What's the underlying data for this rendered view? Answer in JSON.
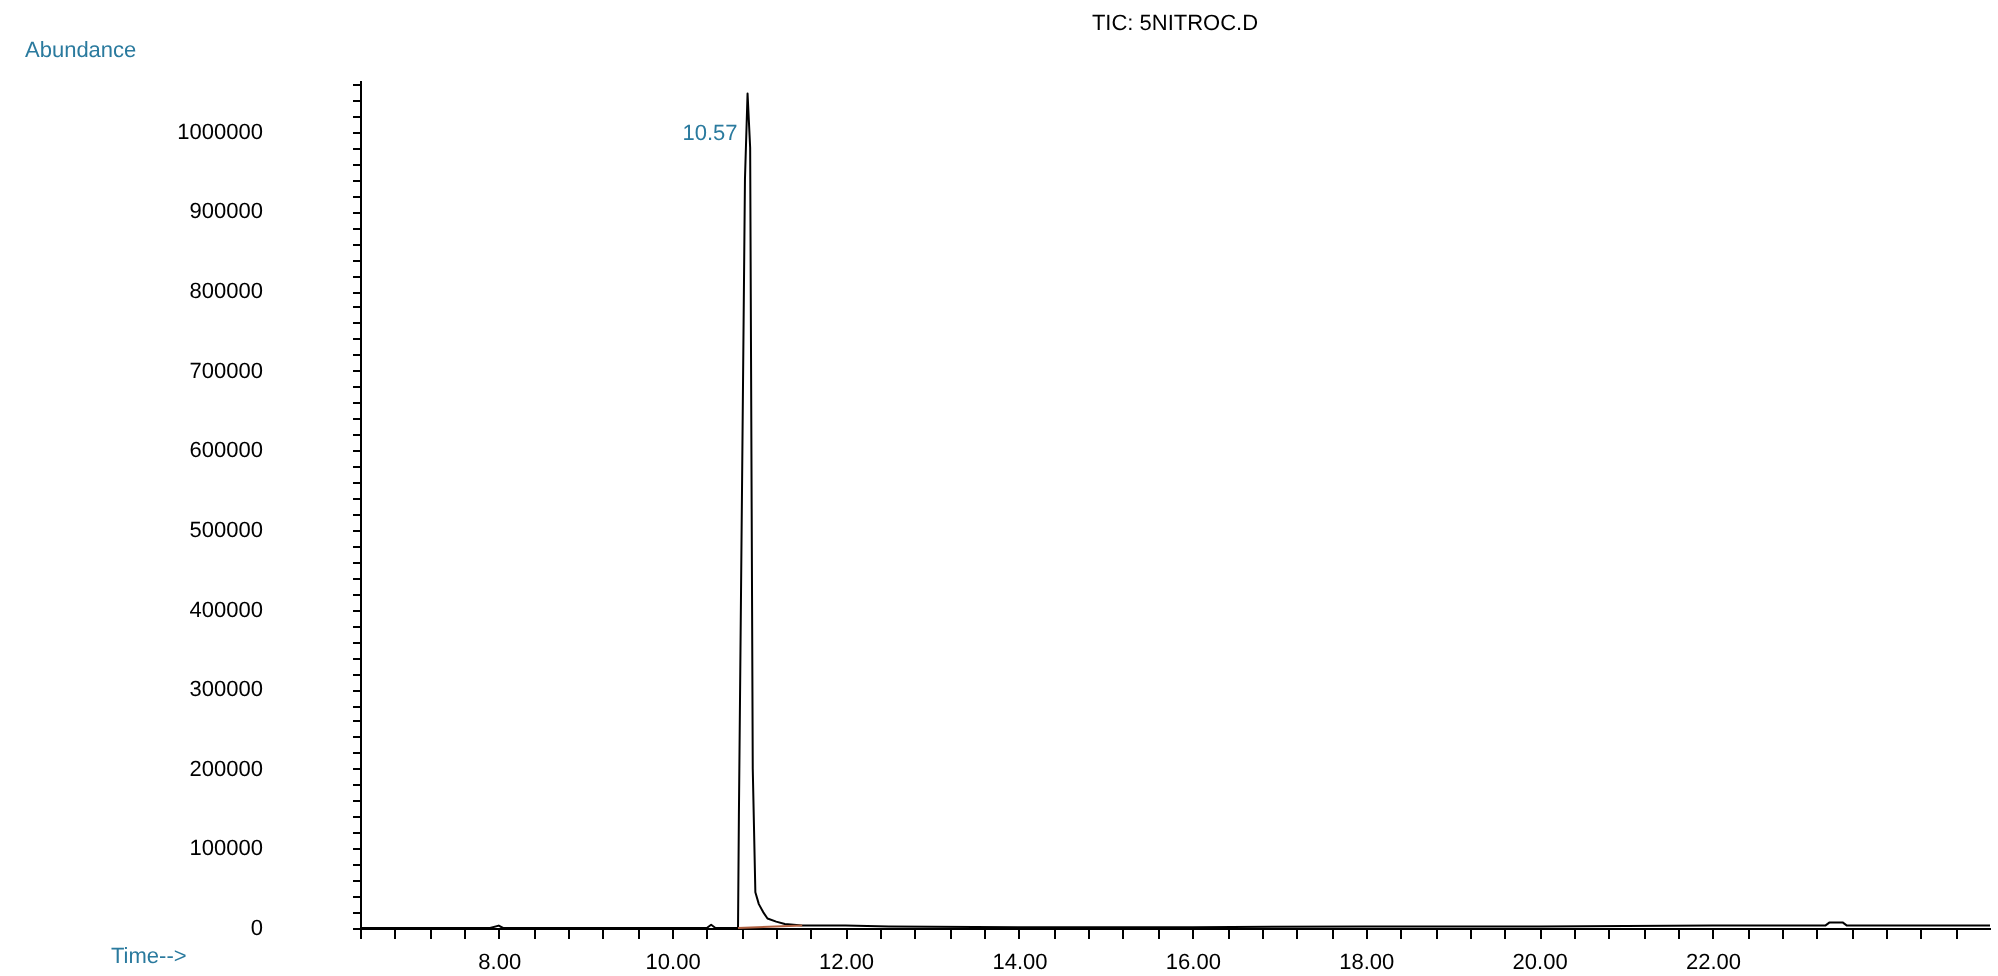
{
  "chart_data": {
    "type": "line",
    "title": "TIC: 5NITROC.D",
    "xlabel": "Time-->",
    "ylabel": "Abundance",
    "xlim": [
      6.4,
      25.2
    ],
    "ylim": [
      0,
      1065000
    ],
    "xticks": [
      {
        "value": 6.4,
        "label": null
      },
      {
        "value": 6.8,
        "label": null
      },
      {
        "value": 7.2,
        "label": null
      },
      {
        "value": 7.6,
        "label": null
      },
      {
        "value": 8,
        "label": "8.00"
      },
      {
        "value": 8.4,
        "label": null
      },
      {
        "value": 8.8,
        "label": null
      },
      {
        "value": 9.2,
        "label": null
      },
      {
        "value": 9.6,
        "label": null
      },
      {
        "value": 10,
        "label": "10.00"
      },
      {
        "value": 10.4,
        "label": null
      },
      {
        "value": 10.8,
        "label": null
      },
      {
        "value": 11.2,
        "label": null
      },
      {
        "value": 11.6,
        "label": null
      },
      {
        "value": 12,
        "label": "12.00"
      },
      {
        "value": 12.4,
        "label": null
      },
      {
        "value": 12.8,
        "label": null
      },
      {
        "value": 13.2,
        "label": null
      },
      {
        "value": 13.6,
        "label": null
      },
      {
        "value": 14,
        "label": "14.00"
      },
      {
        "value": 14.4,
        "label": null
      },
      {
        "value": 14.8,
        "label": null
      },
      {
        "value": 15.2,
        "label": null
      },
      {
        "value": 15.6,
        "label": null
      },
      {
        "value": 16,
        "label": "16.00"
      },
      {
        "value": 16.4,
        "label": null
      },
      {
        "value": 16.8,
        "label": null
      },
      {
        "value": 17.2,
        "label": null
      },
      {
        "value": 17.6,
        "label": null
      },
      {
        "value": 18,
        "label": "18.00"
      },
      {
        "value": 18.4,
        "label": null
      },
      {
        "value": 18.8,
        "label": null
      },
      {
        "value": 19.2,
        "label": null
      },
      {
        "value": 19.6,
        "label": null
      },
      {
        "value": 20,
        "label": "20.00"
      },
      {
        "value": 20.4,
        "label": null
      },
      {
        "value": 20.8,
        "label": null
      },
      {
        "value": 21.2,
        "label": null
      },
      {
        "value": 21.6,
        "label": null
      },
      {
        "value": 22,
        "label": "22.00"
      },
      {
        "value": 22.4,
        "label": null
      },
      {
        "value": 22.8,
        "label": null
      },
      {
        "value": 23.2,
        "label": null
      },
      {
        "value": 23.6,
        "label": null
      },
      {
        "value": 24,
        "label": null
      },
      {
        "value": 24.4,
        "label": null
      },
      {
        "value": 24.8,
        "label": null
      }
    ],
    "yticks": [
      0,
      {
        "value": 20000,
        "label": null
      },
      {
        "value": 40000,
        "label": null
      },
      {
        "value": 60000,
        "label": null
      },
      {
        "value": 80000,
        "label": null
      },
      100000,
      {
        "value": 120000,
        "label": null
      },
      {
        "value": 140000,
        "label": null
      },
      {
        "value": 160000,
        "label": null
      },
      {
        "value": 180000,
        "label": null
      },
      200000,
      {
        "value": 220000,
        "label": null
      },
      {
        "value": 240000,
        "label": null
      },
      {
        "value": 260000,
        "label": null
      },
      {
        "value": 280000,
        "label": null
      },
      300000,
      {
        "value": 320000,
        "label": null
      },
      {
        "value": 340000,
        "label": null
      },
      {
        "value": 360000,
        "label": null
      },
      {
        "value": 380000,
        "label": null
      },
      400000,
      {
        "value": 420000,
        "label": null
      },
      {
        "value": 440000,
        "label": null
      },
      {
        "value": 460000,
        "label": null
      },
      {
        "value": 480000,
        "label": null
      },
      500000,
      {
        "value": 520000,
        "label": null
      },
      {
        "value": 540000,
        "label": null
      },
      {
        "value": 560000,
        "label": null
      },
      {
        "value": 580000,
        "label": null
      },
      600000,
      {
        "value": 620000,
        "label": null
      },
      {
        "value": 640000,
        "label": null
      },
      {
        "value": 660000,
        "label": null
      },
      {
        "value": 680000,
        "label": null
      },
      700000,
      {
        "value": 720000,
        "label": null
      },
      {
        "value": 740000,
        "label": null
      },
      {
        "value": 760000,
        "label": null
      },
      {
        "value": 780000,
        "label": null
      },
      800000,
      {
        "value": 820000,
        "label": null
      },
      {
        "value": 840000,
        "label": null
      },
      {
        "value": 860000,
        "label": null
      },
      {
        "value": 880000,
        "label": null
      },
      900000,
      {
        "value": 920000,
        "label": null
      },
      {
        "value": 940000,
        "label": null
      },
      {
        "value": 960000,
        "label": null
      },
      {
        "value": 980000,
        "label": null
      },
      1000000,
      {
        "value": 1020000,
        "label": null
      },
      {
        "value": 1040000,
        "label": null
      },
      {
        "value": 1060000,
        "label": null
      }
    ],
    "series": [
      {
        "color": "#000000",
        "x": [
          6.4,
          7.9,
          8.0,
          8.05,
          10.4,
          10.45,
          10.5,
          10.76,
          10.77,
          10.84,
          10.87,
          10.9,
          10.93,
          10.96,
          11.0,
          11.05,
          11.1,
          11.2,
          11.3,
          11.5,
          12.0,
          12.5,
          14.0,
          16.0,
          18.0,
          20.0,
          22.0,
          23.3,
          23.35,
          23.5,
          23.55,
          25.2
        ],
        "values": [
          0,
          0,
          3000,
          0,
          0,
          4000,
          0,
          0,
          140000,
          940000,
          1048000,
          980000,
          200000,
          45000,
          30000,
          20000,
          12000,
          8000,
          5000,
          3000,
          3000,
          2000,
          1000,
          1000,
          2000,
          2000,
          3000,
          3000,
          7000,
          7000,
          3000,
          3000
        ]
      },
      {
        "color": "#b06040",
        "x": [
          10.76,
          11.5
        ],
        "values": [
          0,
          3000
        ]
      }
    ],
    "annotations": [
      {
        "text": "10.57",
        "x": 10.87,
        "y": 1048000
      }
    ],
    "grid": false,
    "marker": "none",
    "line_style": "solid"
  }
}
